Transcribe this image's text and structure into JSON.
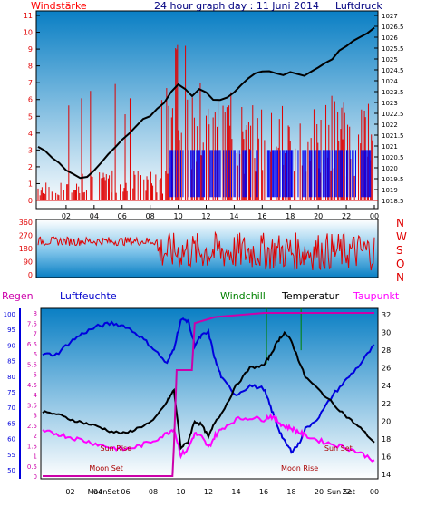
{
  "header": {
    "left_title": "Windstärke",
    "center_title": "24 hour graph day : 11 Juni 2014",
    "right_title": "Luftdruck"
  },
  "colors": {
    "wind": "#e00000",
    "gust_blue": "#0000ee",
    "pressure": "#000000",
    "humidity": "#0000dd",
    "temperature": "#000000",
    "dewpoint": "#ff00ff",
    "rain": "#cc00aa",
    "windchill": "#008000",
    "title_red": "#ff0000",
    "title_blue": "#000080",
    "panel_top": "#0a7fc4",
    "panel_bottom": "#ffffff"
  },
  "chart_data": [
    {
      "type": "bar",
      "name": "wind-pressure",
      "x_ticks": [
        "02",
        "04",
        "06",
        "08",
        "10",
        "12",
        "14",
        "16",
        "18",
        "20",
        "22",
        "00"
      ],
      "left_axis": {
        "label": "Windstärke",
        "ticks": [
          "11",
          "10",
          "9",
          "8",
          "7",
          "6",
          "5",
          "4",
          "3",
          "2",
          "1",
          "0"
        ],
        "range": [
          0,
          11
        ]
      },
      "right_axis": {
        "label": "Luftdruck",
        "ticks": [
          "1027",
          "1026.5",
          "1026",
          "1025.5",
          "1025",
          "1024.5",
          "1024",
          "1023.5",
          "1023",
          "1022.5",
          "1022",
          "1021.5",
          "1021",
          "1020.5",
          "1020",
          "1019.5",
          "1019",
          "1018.5"
        ],
        "range": [
          1018.5,
          1027
        ]
      },
      "pressure_points": [
        [
          0,
          1021.0
        ],
        [
          0.5,
          1020.8
        ],
        [
          1,
          1020.5
        ],
        [
          1.5,
          1020.2
        ],
        [
          2,
          1019.9
        ],
        [
          2.5,
          1019.7
        ],
        [
          3,
          1019.5
        ],
        [
          3.5,
          1019.6
        ],
        [
          4,
          1019.9
        ],
        [
          4.5,
          1020.2
        ],
        [
          5,
          1020.6
        ],
        [
          5.5,
          1020.9
        ],
        [
          6,
          1021.3
        ],
        [
          6.5,
          1021.6
        ],
        [
          7,
          1021.9
        ],
        [
          7.5,
          1022.2
        ],
        [
          8,
          1022.4
        ],
        [
          8.5,
          1022.7
        ],
        [
          9,
          1023.0
        ],
        [
          9.5,
          1023.5
        ],
        [
          10,
          1023.8
        ],
        [
          10.5,
          1023.6
        ],
        [
          11,
          1023.3
        ],
        [
          11.5,
          1023.6
        ],
        [
          12,
          1023.5
        ],
        [
          12.5,
          1023.1
        ],
        [
          13,
          1023.1
        ],
        [
          13.5,
          1023.2
        ],
        [
          14,
          1023.5
        ],
        [
          14.5,
          1023.8
        ],
        [
          15,
          1024.1
        ],
        [
          15.5,
          1024.3
        ],
        [
          16,
          1024.4
        ],
        [
          16.5,
          1024.4
        ],
        [
          17,
          1024.3
        ],
        [
          17.5,
          1024.3
        ],
        [
          18,
          1024.4
        ],
        [
          18.5,
          1024.3
        ],
        [
          19,
          1024.2
        ],
        [
          19.5,
          1024.4
        ],
        [
          20,
          1024.6
        ],
        [
          20.5,
          1024.8
        ],
        [
          21,
          1025.0
        ],
        [
          21.5,
          1025.4
        ],
        [
          22,
          1025.6
        ],
        [
          22.5,
          1025.8
        ],
        [
          23,
          1026.0
        ],
        [
          23.5,
          1026.2
        ],
        [
          24,
          1026.4
        ]
      ]
    },
    {
      "type": "line",
      "name": "wind-direction",
      "left_axis": {
        "ticks": [
          "360",
          "270",
          "180",
          "90",
          "0"
        ],
        "range": [
          0,
          360
        ]
      },
      "right_labels": [
        "N",
        "W",
        "S",
        "O",
        "N"
      ]
    },
    {
      "type": "line",
      "name": "humidity-temperature",
      "x_ticks": [
        "02",
        "04",
        "06",
        "08",
        "10",
        "12",
        "14",
        "16",
        "18",
        "20",
        "22",
        "00"
      ],
      "legend": [
        "Regen",
        "Luftfeuchte",
        "Windchill",
        "Temperatur",
        "Taupunkt"
      ],
      "rain_axis": {
        "label": "Regen",
        "ticks": [
          "8",
          "7.5",
          "7",
          "6.5",
          "6",
          "5.5",
          "5",
          "4.5",
          "4",
          "3.5",
          "3",
          "2.5",
          "2",
          "1.5",
          "1",
          "0.5",
          "0"
        ],
        "range": [
          0,
          8
        ]
      },
      "humidity_axis": {
        "label": "Luftfeuchte",
        "ticks": [
          "100",
          "95",
          "90",
          "85",
          "80",
          "75",
          "70",
          "65",
          "60",
          "55",
          "50"
        ],
        "range": [
          50,
          100
        ]
      },
      "temperature_axis": {
        "ticks": [
          "32",
          "30",
          "28",
          "26",
          "24",
          "22",
          "20",
          "18",
          "16",
          "14"
        ],
        "range": [
          14,
          32
        ]
      },
      "annotations": [
        {
          "text": "Sun Rise",
          "hour": 5.3
        },
        {
          "text": "Moon Set",
          "hour": 4.6
        },
        {
          "text": "Sun Set",
          "hour": 21.4
        },
        {
          "text": "Moon Rise",
          "hour": 18.6
        },
        {
          "text": "MoonSet",
          "hour": 4.4
        },
        {
          "text": "Sun Set",
          "hour": 21.6
        }
      ],
      "humidity_points": [
        [
          0,
          87
        ],
        [
          1,
          87
        ],
        [
          2,
          91
        ],
        [
          3,
          94
        ],
        [
          4,
          96
        ],
        [
          5,
          97
        ],
        [
          6,
          96
        ],
        [
          7,
          93
        ],
        [
          8,
          89
        ],
        [
          9,
          84
        ],
        [
          9.5,
          89
        ],
        [
          10,
          98
        ],
        [
          10.5,
          98
        ],
        [
          11,
          90
        ],
        [
          11.5,
          93
        ],
        [
          12,
          94
        ],
        [
          12.5,
          85
        ],
        [
          13,
          79
        ],
        [
          14,
          74
        ],
        [
          15,
          77
        ],
        [
          16,
          76
        ],
        [
          16.5,
          70
        ],
        [
          17,
          64
        ],
        [
          17.5,
          59
        ],
        [
          18,
          56
        ],
        [
          18.5,
          58
        ],
        [
          19,
          63
        ],
        [
          20,
          67
        ],
        [
          21,
          74
        ],
        [
          22,
          79
        ],
        [
          23,
          84
        ],
        [
          24,
          90
        ]
      ],
      "temperature_points": [
        [
          0,
          21.0
        ],
        [
          1,
          20.8
        ],
        [
          2,
          20.2
        ],
        [
          3,
          19.8
        ],
        [
          4,
          19.4
        ],
        [
          5,
          18.8
        ],
        [
          6,
          18.6
        ],
        [
          7,
          19.3
        ],
        [
          8,
          20.0
        ],
        [
          9,
          22.2
        ],
        [
          9.5,
          23.5
        ],
        [
          10,
          17.0
        ],
        [
          10.5,
          17.6
        ],
        [
          11,
          20.0
        ],
        [
          11.5,
          19.6
        ],
        [
          12,
          18.2
        ],
        [
          12.5,
          20.0
        ],
        [
          13,
          21.0
        ],
        [
          14,
          24.0
        ],
        [
          15,
          26.0
        ],
        [
          16,
          26.3
        ],
        [
          16.5,
          27.5
        ],
        [
          17,
          29.0
        ],
        [
          17.5,
          30.0
        ],
        [
          18,
          29.0
        ],
        [
          18.5,
          27.0
        ],
        [
          19,
          25.0
        ],
        [
          20,
          23.5
        ],
        [
          21,
          22.0
        ],
        [
          22,
          20.5
        ],
        [
          23,
          19.2
        ],
        [
          24,
          17.6
        ]
      ],
      "dewpoint_points": [
        [
          0,
          18.8
        ],
        [
          1,
          18.6
        ],
        [
          2,
          18.2
        ],
        [
          3,
          17.8
        ],
        [
          4,
          17.4
        ],
        [
          5,
          17.0
        ],
        [
          6,
          16.8
        ],
        [
          7,
          17.2
        ],
        [
          8,
          17.8
        ],
        [
          9,
          18.6
        ],
        [
          9.5,
          19.2
        ],
        [
          10,
          16.2
        ],
        [
          10.5,
          16.8
        ],
        [
          11,
          18.6
        ],
        [
          11.5,
          18.2
        ],
        [
          12,
          17.0
        ],
        [
          12.5,
          18.4
        ],
        [
          13,
          19.2
        ],
        [
          14,
          20.2
        ],
        [
          15,
          20.4
        ],
        [
          16,
          20.2
        ],
        [
          16.5,
          20.6
        ],
        [
          17,
          20.0
        ],
        [
          17.5,
          19.4
        ],
        [
          18,
          19.2
        ],
        [
          18.5,
          18.8
        ],
        [
          19,
          18.4
        ],
        [
          20,
          17.8
        ],
        [
          21,
          17.4
        ],
        [
          22,
          17.0
        ],
        [
          23,
          16.4
        ],
        [
          24,
          15.6
        ]
      ],
      "rain_points": [
        [
          0,
          0
        ],
        [
          9.4,
          0
        ],
        [
          9.5,
          1.5
        ],
        [
          9.7,
          5.2
        ],
        [
          10.8,
          5.2
        ],
        [
          11,
          7.5
        ],
        [
          12.5,
          7.8
        ],
        [
          16,
          8
        ],
        [
          24,
          8
        ]
      ]
    }
  ]
}
